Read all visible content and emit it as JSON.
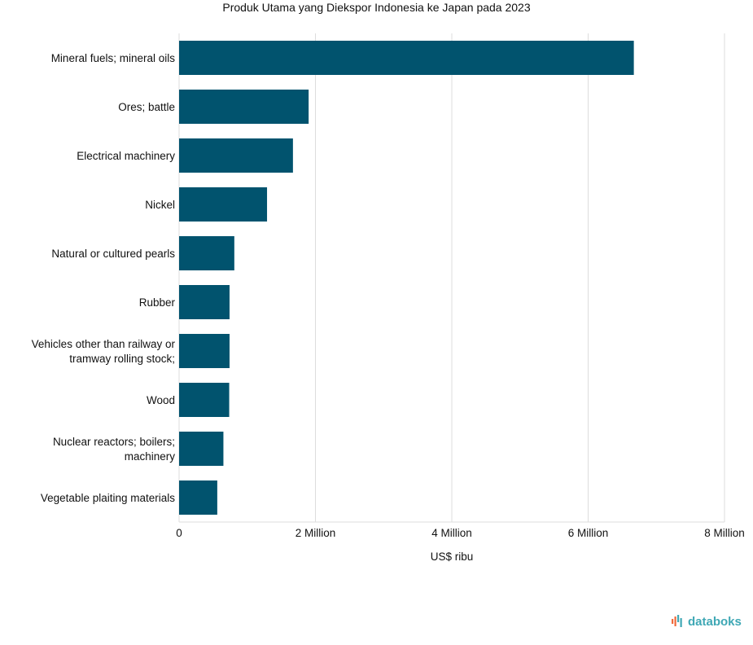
{
  "chart_data": {
    "type": "bar",
    "orientation": "horizontal",
    "title": "Produk Utama yang Diekspor Indonesia ke Japan pada 2023",
    "xlabel": "US$ ribu",
    "ylabel": "",
    "categories": [
      "Mineral fuels; mineral oils",
      "Ores; battle",
      "Electrical machinery",
      "Nickel",
      "Natural or cultured pearls",
      "Rubber",
      "Vehicles other than railway or tramway rolling stock;",
      "Wood",
      "Nuclear reactors; boilers; machinery",
      "Vegetable plaiting materials"
    ],
    "category_lines": [
      [
        "Mineral fuels; mineral oils"
      ],
      [
        "Ores; battle"
      ],
      [
        "Electrical machinery"
      ],
      [
        "Nickel"
      ],
      [
        "Natural or cultured pearls"
      ],
      [
        "Rubber"
      ],
      [
        "Vehicles other than railway or",
        "tramway rolling stock;"
      ],
      [
        "Wood"
      ],
      [
        "Nuclear reactors; boilers;",
        "machinery"
      ],
      [
        "Vegetable plaiting materials"
      ]
    ],
    "values": [
      6670000,
      1900000,
      1670000,
      1290000,
      810000,
      740000,
      740000,
      735000,
      650000,
      560000
    ],
    "xlim": [
      0,
      8000000
    ],
    "xticks": [
      0,
      2000000,
      4000000,
      6000000,
      8000000
    ],
    "xtick_labels": [
      "0",
      "2 Million",
      "4 Million",
      "6 Million",
      "8 Million"
    ],
    "bar_color": "#01536e",
    "grid": true
  },
  "brand": {
    "name": "databoks",
    "icon": "databoks-logo-icon",
    "color": "#3fa8b5"
  }
}
